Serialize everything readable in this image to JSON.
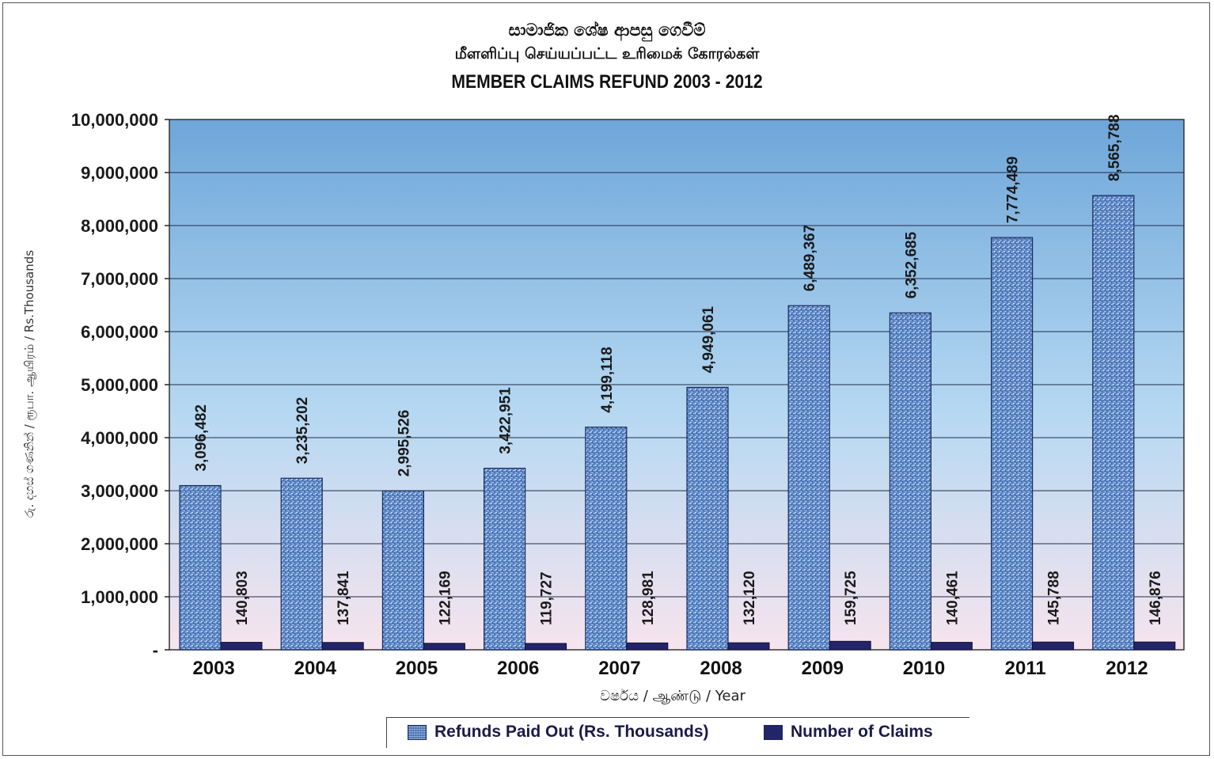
{
  "chart_data": {
    "type": "bar",
    "title_lines": [
      "සාමාජික ශේෂ ආපසු ගෙවීම්",
      "மீளளிப்பு செய்யப்பட்ட உரிமைக் கோரல்கள்",
      "MEMBER CLAIMS REFUND  2003 - 2012"
    ],
    "ylabel": "රු. දහස් ගණනින් / ரூபா. ஆயிரம் / Rs.Thousands",
    "xlabel": "වර්ෂය  /  ஆண்டு  / Year",
    "categories": [
      "2003",
      "2004",
      "2005",
      "2006",
      "2007",
      "2008",
      "2009",
      "2010",
      "2011",
      "2012"
    ],
    "series": [
      {
        "name": "Refunds Paid Out (Rs. Thousands)",
        "values": [
          3096482,
          3235202,
          2995526,
          3422951,
          4199118,
          4949061,
          6489367,
          6352685,
          7774489,
          8565788
        ],
        "labels": [
          "3,096,482",
          "3,235,202",
          "2,995,526",
          "3,422,951",
          "4,199,118",
          "4,949,061",
          "6,489,367",
          "6,352,685",
          "7,774,489",
          "8,565,788"
        ]
      },
      {
        "name": "Number of Claims",
        "values": [
          140803,
          137841,
          122169,
          119727,
          128981,
          132120,
          159725,
          140461,
          145788,
          146876
        ],
        "labels": [
          "140,803",
          "137,841",
          "122,169",
          "119,727",
          "128,981",
          "132,120",
          "159,725",
          "140,461",
          "145,788",
          "146,876"
        ]
      }
    ],
    "ylim": [
      0,
      10000000
    ],
    "yticks": [
      0,
      1000000,
      2000000,
      3000000,
      4000000,
      5000000,
      6000000,
      7000000,
      8000000,
      9000000,
      10000000
    ],
    "ytick_labels": [
      "-",
      "1,000,000",
      "2,000,000",
      "3,000,000",
      "4,000,000",
      "5,000,000",
      "6,000,000",
      "7,000,000",
      "8,000,000",
      "9,000,000",
      "10,000,000"
    ],
    "grid": true,
    "legend_position": "bottom",
    "colors": {
      "refunds": "#5d86c4",
      "claims": "#24246a",
      "plot_bg_top": "#6ea6d9",
      "plot_bg_bottom": "#f6e4ee"
    }
  }
}
